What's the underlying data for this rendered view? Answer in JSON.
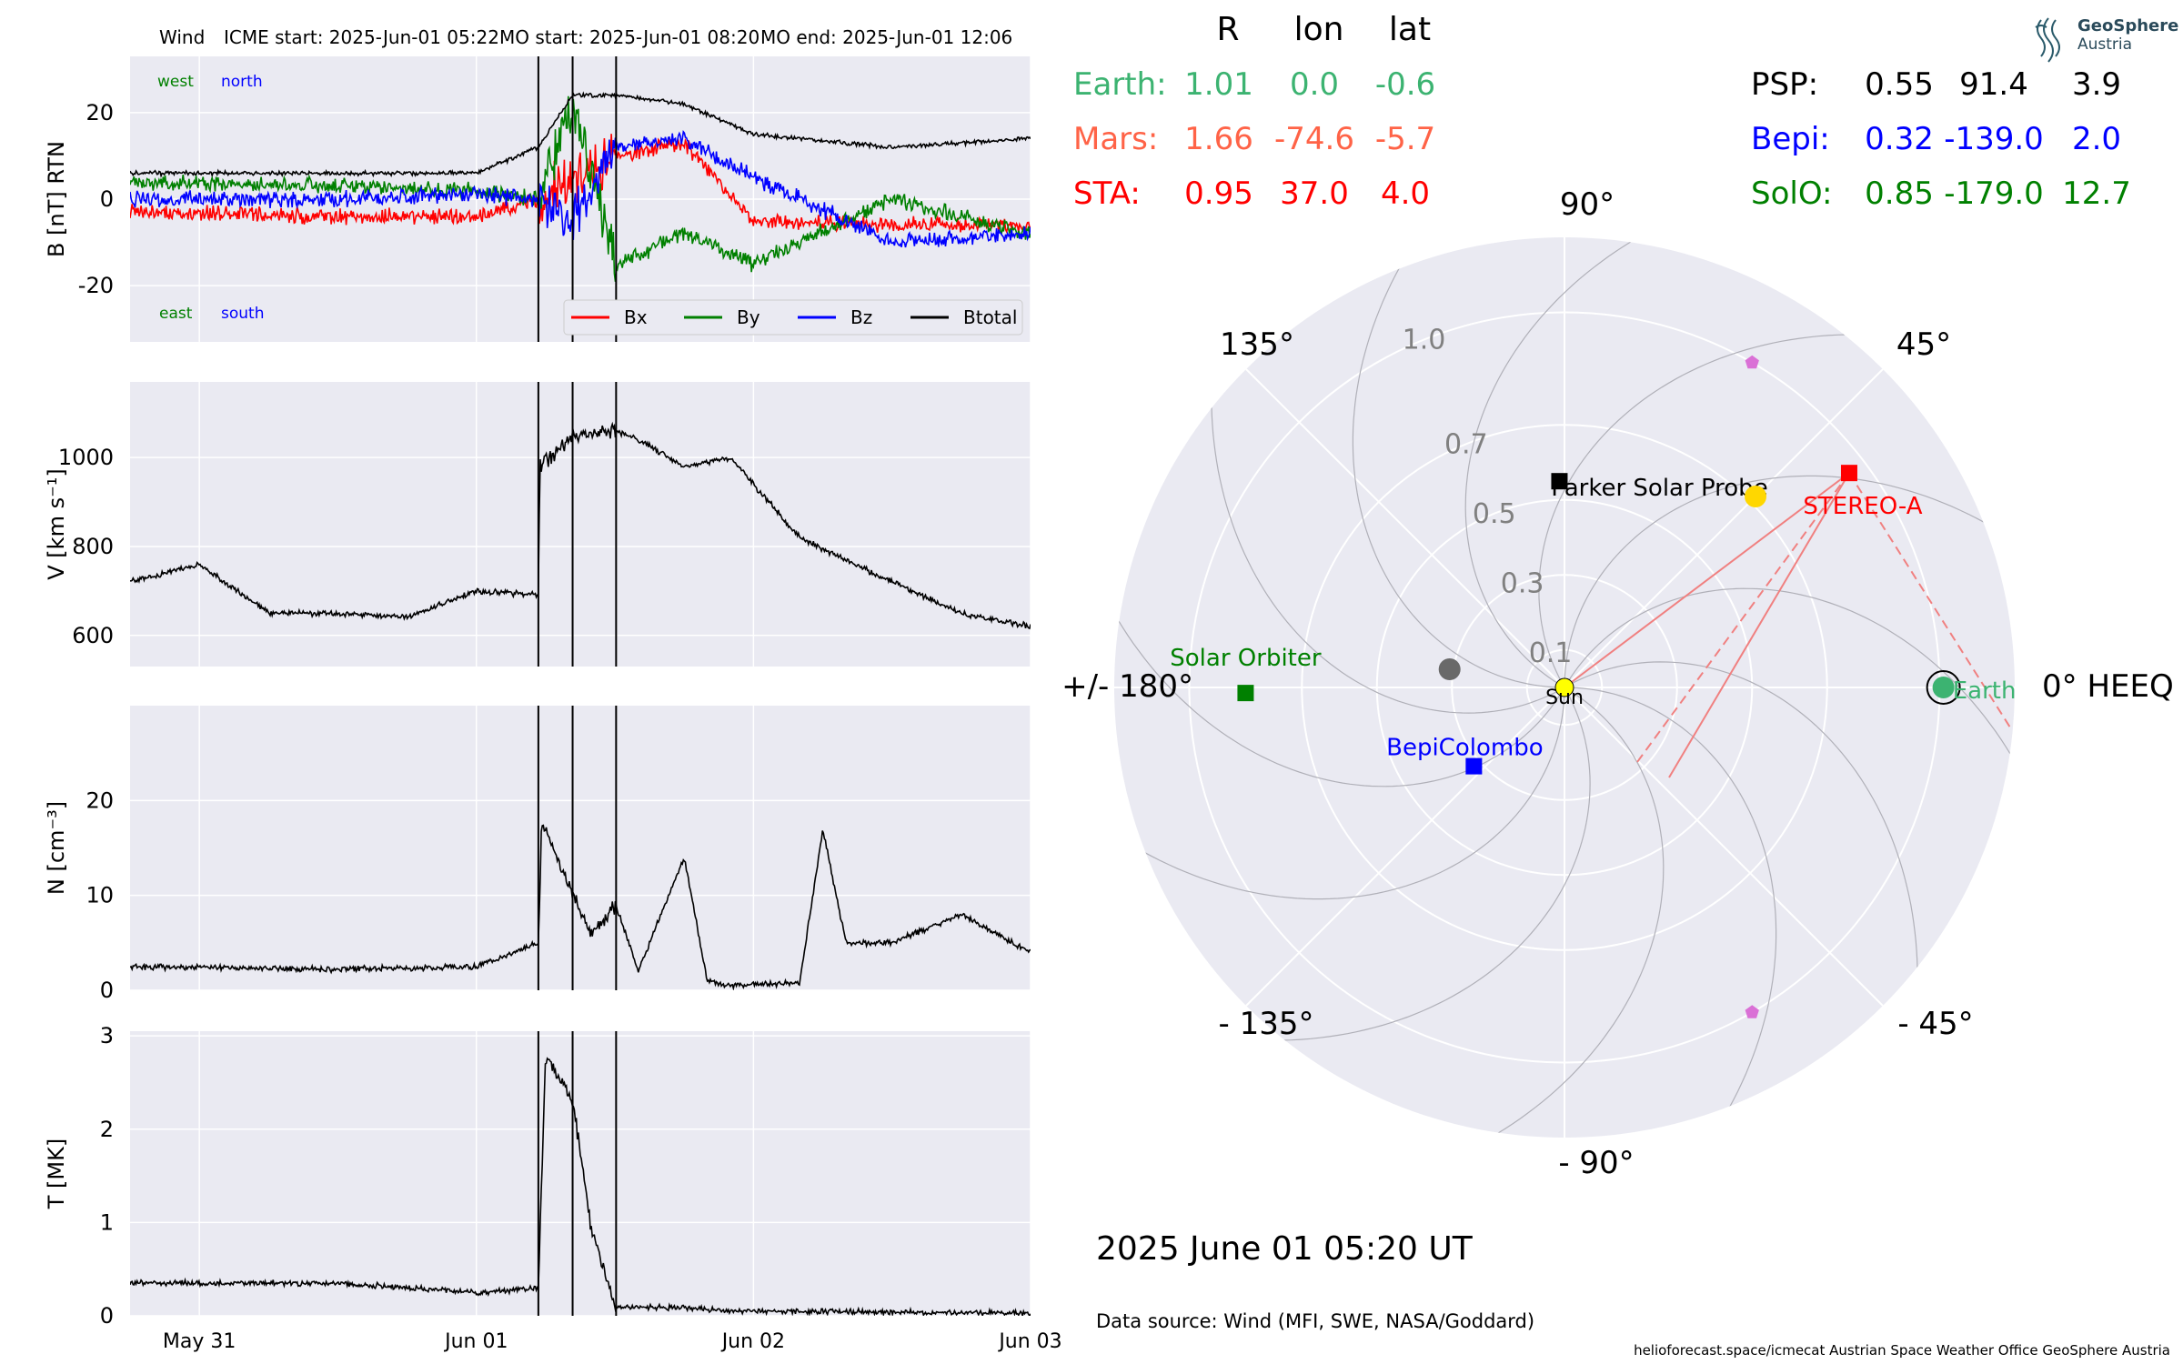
{
  "header": {
    "spacecraft": "Wind",
    "icme_start": "ICME start: 2025-Jun-01 05:22",
    "mo_start": "MO start: 2025-Jun-01 08:20",
    "mo_end": "MO end: 2025-Jun-01 12:06"
  },
  "timestamp": "2025 June 01  05:20 UT",
  "data_source": "Data source: Wind (MFI, SWE, NASA/Goddard)",
  "footer": "helioforecast.space/icmecat   Austrian Space Weather Office   GeoSphere Austria",
  "logo": {
    "line1": "GeoSphere",
    "line2": "Austria"
  },
  "colors": {
    "plot_bg": "#eaeaf2",
    "grid": "#ffffff",
    "bx": "#ff0000",
    "by": "#008000",
    "bz": "#0000ff",
    "bt": "#000000",
    "earth": "#3cb371",
    "mars": "#ff6347",
    "sta": "#ff0000",
    "psp": "#000000",
    "bepi": "#0000ff",
    "solo": "#008000"
  },
  "positions": {
    "headers": [
      "R",
      "lon",
      "lat"
    ],
    "left": [
      {
        "name": "Earth:",
        "R": "1.01",
        "lon": "0.0",
        "lat": "-0.6",
        "color": "#3cb371"
      },
      {
        "name": "Mars:",
        "R": "1.66",
        "lon": "-74.6",
        "lat": "-5.7",
        "color": "#ff6347"
      },
      {
        "name": "STA:",
        "R": "0.95",
        "lon": "37.0",
        "lat": "4.0",
        "color": "#ff0000"
      }
    ],
    "right": [
      {
        "name": "PSP:",
        "R": "0.55",
        "lon": "91.4",
        "lat": "3.9",
        "color": "#000000"
      },
      {
        "name": "Bepi:",
        "R": "0.32",
        "lon": "-139.0",
        "lat": "2.0",
        "color": "#0000ff"
      },
      {
        "name": "SolO:",
        "R": "0.85",
        "lon": "-179.0",
        "lat": "12.7",
        "color": "#008000"
      }
    ]
  },
  "chart_data": [
    {
      "type": "line",
      "panel": "magnetic_field",
      "ylabel": "B [nT] RTN",
      "ylim": [
        -33,
        33
      ],
      "yticks": [
        -20,
        0,
        20
      ],
      "annotations": {
        "west": "west",
        "north": "north",
        "east": "east",
        "south": "south"
      },
      "legend": [
        "Bx",
        "By",
        "Bz",
        "Btotal"
      ],
      "legend_placement": "lower-right",
      "x_range_days": [
        "2025-05-30 18:00",
        "2025-06-03 00:00"
      ],
      "series": [
        {
          "name": "Bx",
          "x": [
            "05-30 18:00",
            "05-31 12:00",
            "06-01 00:00",
            "06-01 05:22",
            "06-01 08:20",
            "06-01 12:06",
            "06-01 18:00",
            "06-02 00:00",
            "06-02 12:00",
            "06-03 00:00"
          ],
          "y": [
            -3,
            -4,
            -4,
            0,
            5,
            10,
            13,
            -5,
            -6,
            -6
          ]
        },
        {
          "name": "By",
          "x": [
            "05-30 18:00",
            "05-31 12:00",
            "06-01 00:00",
            "06-01 05:22",
            "06-01 08:20",
            "06-01 12:06",
            "06-01 18:00",
            "06-02 00:00",
            "06-02 12:00",
            "06-03 00:00"
          ],
          "y": [
            4,
            3,
            2,
            0,
            22,
            -15,
            -8,
            -15,
            0,
            -8
          ]
        },
        {
          "name": "Bz",
          "x": [
            "05-30 18:00",
            "05-31 12:00",
            "06-01 00:00",
            "06-01 05:22",
            "06-01 08:20",
            "06-01 12:06",
            "06-01 18:00",
            "06-02 00:00",
            "06-02 12:00",
            "06-03 00:00"
          ],
          "y": [
            0,
            0,
            1,
            0,
            -5,
            12,
            14,
            5,
            -10,
            -8
          ]
        },
        {
          "name": "Btotal",
          "x": [
            "05-30 18:00",
            "05-31 12:00",
            "06-01 00:00",
            "06-01 05:22",
            "06-01 08:20",
            "06-01 12:06",
            "06-01 18:00",
            "06-02 00:00",
            "06-02 12:00",
            "06-03 00:00"
          ],
          "y": [
            6,
            6,
            6,
            12,
            24,
            24,
            22,
            15,
            12,
            14
          ]
        }
      ]
    },
    {
      "type": "line",
      "panel": "speed",
      "ylabel": "V [km s⁻¹]",
      "ylim": [
        530,
        1170
      ],
      "yticks": [
        600,
        800,
        1000
      ],
      "series": [
        {
          "name": "V",
          "x": [
            "05-30 18:00",
            "05-31 00:00",
            "05-31 06:00",
            "05-31 12:00",
            "05-31 18:00",
            "06-01 00:00",
            "06-01 05:22",
            "06-01 05:30",
            "06-01 08:20",
            "06-01 12:06",
            "06-01 14:00",
            "06-01 18:00",
            "06-01 22:00",
            "06-02 04:00",
            "06-02 12:00",
            "06-02 18:00",
            "06-03 00:00"
          ],
          "y": [
            720,
            760,
            650,
            650,
            640,
            700,
            690,
            980,
            1050,
            1060,
            1040,
            980,
            1000,
            820,
            720,
            650,
            620
          ]
        }
      ]
    },
    {
      "type": "line",
      "panel": "density",
      "ylabel": "N [cm⁻³]",
      "ylim": [
        0,
        30
      ],
      "yticks": [
        0,
        10,
        20
      ],
      "series": [
        {
          "name": "N",
          "x": [
            "05-30 18:00",
            "05-31 12:00",
            "06-01 00:00",
            "06-01 05:22",
            "06-01 05:40",
            "06-01 08:20",
            "06-01 10:00",
            "06-01 12:06",
            "06-01 14:00",
            "06-01 18:00",
            "06-01 20:00",
            "06-01 22:00",
            "06-02 04:00",
            "06-02 06:00",
            "06-02 08:00",
            "06-02 12:00",
            "06-02 18:00",
            "06-03 00:00"
          ],
          "y": [
            2.5,
            2.2,
            2.5,
            5,
            18,
            10,
            6,
            9,
            2,
            14,
            1,
            0.5,
            0.8,
            17,
            5,
            5,
            8,
            4
          ]
        }
      ]
    },
    {
      "type": "line",
      "panel": "temperature",
      "ylabel": "T [MK]",
      "ylim": [
        0,
        3.05
      ],
      "yticks": [
        0,
        1,
        2,
        3
      ],
      "xticks": [
        "May 31",
        "Jun 01",
        "Jun 02",
        "Jun 03"
      ],
      "series": [
        {
          "name": "T",
          "x": [
            "05-30 18:00",
            "05-31 12:00",
            "06-01 00:00",
            "06-01 05:22",
            "06-01 06:00",
            "06-01 08:20",
            "06-01 10:00",
            "06-01 12:06",
            "06-01 18:00",
            "06-02 00:00",
            "06-02 12:00",
            "06-03 00:00"
          ],
          "y": [
            0.35,
            0.35,
            0.25,
            0.3,
            2.8,
            2.3,
            0.9,
            0.1,
            0.08,
            0.05,
            0.04,
            0.03
          ]
        }
      ]
    },
    {
      "type": "scatter",
      "panel": "polar_positions",
      "coordinate_system": "HEEQ",
      "angle_labels": {
        "a90": "90°",
        "a45": "45°",
        "a135": "135°",
        "a0": "0° HEEQ",
        "a180": "+/- 180°",
        "am45": "- 45°",
        "am90": "- 90°",
        "am135": "- 135°"
      },
      "radial_ticks": [
        "0.1",
        "0.3",
        "0.5",
        "0.7",
        "1.0"
      ],
      "rmax": 1.2,
      "objects": [
        {
          "name": "Sun",
          "label": "Sun",
          "r": 0.0,
          "lon": 0,
          "marker": "circle",
          "color": "#ffff00"
        },
        {
          "name": "Earth",
          "label": "Earth",
          "r": 1.01,
          "lon": 0.0,
          "marker": "circle",
          "color": "#3cb371"
        },
        {
          "name": "Mars",
          "r": 1.66,
          "lon": -74.6,
          "marker": "circle",
          "color": "#ff6347"
        },
        {
          "name": "STEREO-A",
          "label": "STEREO-A",
          "r": 0.95,
          "lon": 37.0,
          "marker": "square",
          "color": "#ff0000"
        },
        {
          "name": "Parker Solar Probe",
          "label": "Parker Solar Probe",
          "r": 0.55,
          "lon": 91.4,
          "marker": "square",
          "color": "#000000"
        },
        {
          "name": "BepiColombo",
          "label": "BepiColombo",
          "r": 0.32,
          "lon": -139.0,
          "marker": "square",
          "color": "#0000ff"
        },
        {
          "name": "Solar Orbiter",
          "label": "Solar Orbiter",
          "r": 0.85,
          "lon": -179.0,
          "marker": "square",
          "color": "#008000"
        },
        {
          "name": "Venus",
          "r": 0.72,
          "lon": 45,
          "marker": "circle",
          "color": "#ffd700"
        },
        {
          "name": "Mercury",
          "r": 0.31,
          "lon": 171,
          "marker": "circle",
          "color": "#696969"
        },
        {
          "name": "L4",
          "r": 1.0,
          "lon": 60,
          "marker": "pentagon",
          "color": "#da70d6"
        },
        {
          "name": "L5",
          "r": 1.0,
          "lon": -60,
          "marker": "pentagon",
          "color": "#da70d6"
        }
      ]
    }
  ]
}
